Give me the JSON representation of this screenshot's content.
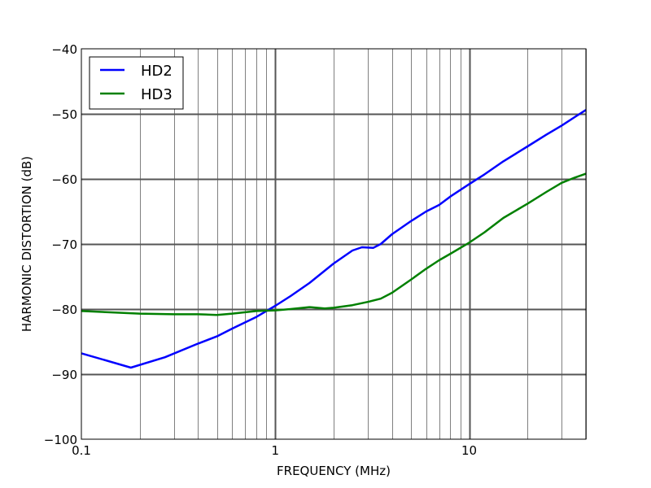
{
  "chart_data": {
    "type": "line",
    "title": "",
    "xlabel": "FREQUENCY (MHz)",
    "ylabel": "HARMONIC DISTORTION (dB)",
    "xscale": "log",
    "xlim": [
      0.1,
      40
    ],
    "ylim": [
      -100,
      -40
    ],
    "x_ticks": [
      0.1,
      1,
      10
    ],
    "x_tick_labels": [
      "0.1",
      "1",
      "10"
    ],
    "y_ticks": [
      -40,
      -50,
      -60,
      -70,
      -80,
      -90,
      -100
    ],
    "y_tick_labels": [
      "−40",
      "−50",
      "−60",
      "−70",
      "−80",
      "−90",
      "−100"
    ],
    "grid": true,
    "legend_position": "upper left",
    "series": [
      {
        "name": "HD2",
        "color": "#0000ff",
        "x": [
          0.1,
          0.18,
          0.27,
          0.4,
          0.5,
          0.6,
          0.8,
          1.0,
          1.2,
          1.5,
          2.0,
          2.5,
          2.8,
          3.2,
          3.5,
          4.0,
          5.0,
          6.0,
          7.0,
          8.0,
          10.0,
          12.0,
          15.0,
          20.0,
          25.0,
          30.0,
          35.0,
          40.0
        ],
        "y": [
          -86.8,
          -89.0,
          -87.4,
          -85.3,
          -84.2,
          -83.0,
          -81.2,
          -79.5,
          -78.0,
          -76.0,
          -73.0,
          -71.0,
          -70.5,
          -70.6,
          -70.0,
          -68.5,
          -66.5,
          -65.0,
          -64.0,
          -62.7,
          -60.8,
          -59.3,
          -57.3,
          -55.0,
          -53.2,
          -51.8,
          -50.5,
          -49.4
        ]
      },
      {
        "name": "HD3",
        "color": "#008000",
        "x": [
          0.1,
          0.2,
          0.3,
          0.4,
          0.5,
          0.6,
          0.8,
          1.0,
          1.2,
          1.5,
          1.8,
          2.0,
          2.5,
          3.0,
          3.5,
          4.0,
          5.0,
          6.0,
          7.0,
          8.0,
          10.0,
          12.0,
          15.0,
          20.0,
          25.0,
          30.0,
          35.0,
          40.0
        ],
        "y": [
          -80.3,
          -80.7,
          -80.8,
          -80.8,
          -80.9,
          -80.7,
          -80.3,
          -80.2,
          -80.0,
          -79.7,
          -79.9,
          -79.8,
          -79.4,
          -78.9,
          -78.4,
          -77.5,
          -75.5,
          -73.8,
          -72.5,
          -71.5,
          -69.8,
          -68.2,
          -66.0,
          -63.8,
          -62.0,
          -60.6,
          -59.8,
          -59.2
        ]
      }
    ]
  },
  "legend": {
    "items": [
      {
        "label": "HD2",
        "color": "#0000ff"
      },
      {
        "label": "HD3",
        "color": "#008000"
      }
    ]
  },
  "colors": {
    "grid_major": "#555555",
    "grid_minor": "#808080",
    "frame": "#000000"
  }
}
